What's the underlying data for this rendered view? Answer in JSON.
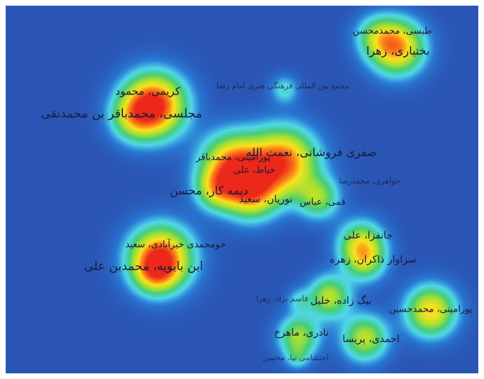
{
  "density_map": {
    "labels": {
      "tabasi": "طبسی، محمدمحسن",
      "bakhtiari": "بختیاری، زهرا",
      "majma": "مجمع بین المللی فرهنگی هنری امام رضا",
      "karimi": "کریمی، محمود",
      "majlesi": "مجلسی، محمدباقر بن محمدتقی",
      "saghari": "صفری فروشانی، نعمت الله",
      "pouramini_mb": "پورامینی، محمدباقر",
      "khayyat": "خیاط، علی",
      "javaheri": "جواهری، محمدرضا",
      "dimekar": "دیمه کار، محسن",
      "nourian": "نوریان، سعید",
      "ghomi": "قمی، عباس",
      "janfaza": "جانفزا، علی",
      "sazavar": "سزاوار ذاکران، زهره",
      "khomohammadi": "خومحمدی خیرآبادی، سعید",
      "ibnbabawayh": "ابن بابویه، محمدبن علی",
      "pouramini_mh": "پورامینی، محمدحسین",
      "beygzadeh": "بیگ زاده، خلیل",
      "ghasemnejad": "قاسم نژاد، زهرا",
      "naderi": "نادری، ماهرخ",
      "ahmadi": "احمدی، پریسا",
      "ehteshami": "احتشامی نیا، محسن"
    }
  }
}
